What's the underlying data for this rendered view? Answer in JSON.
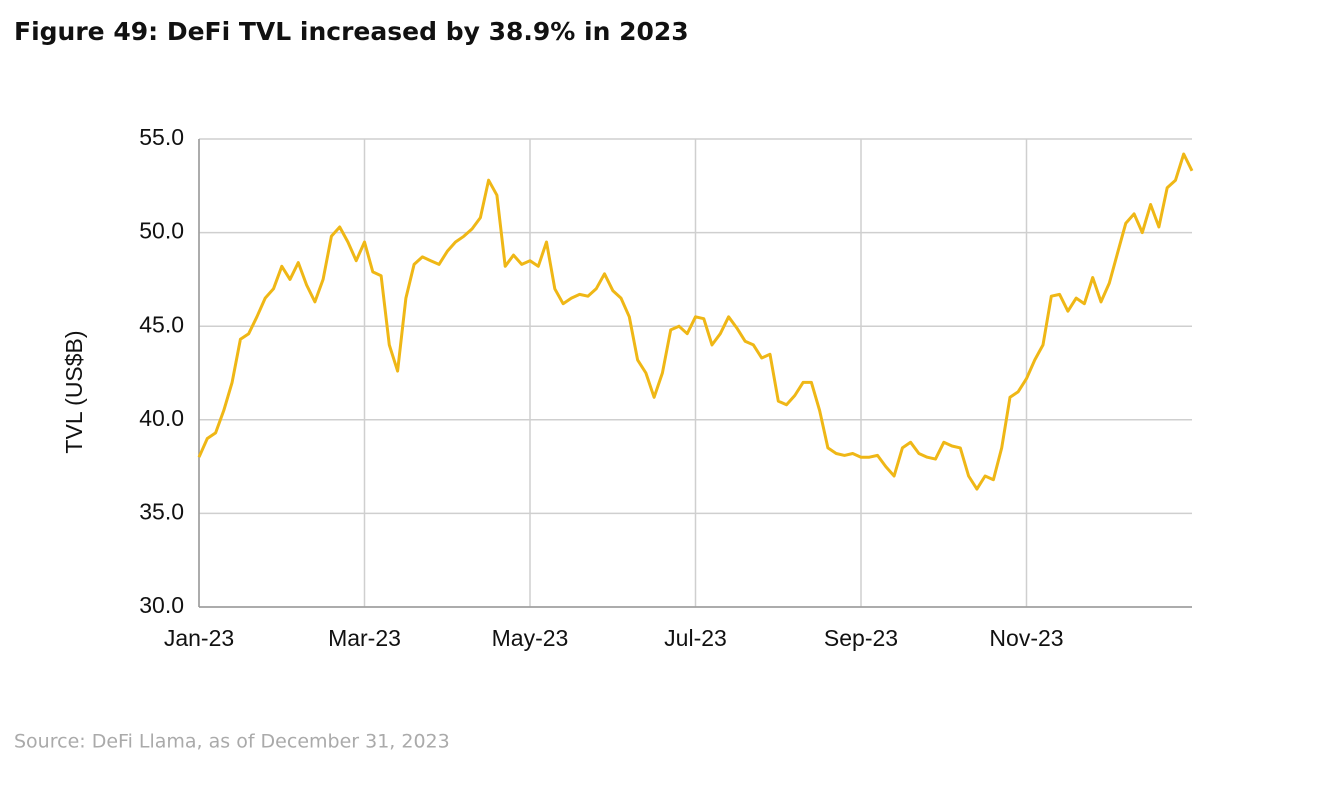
{
  "chart_data": {
    "type": "line",
    "title": "Figure 49: DeFi TVL increased by 38.9% in 2023",
    "y_label": "TVL (US$B)",
    "source": "Source: DeFi Llama, as of December 31, 2023",
    "categories": [
      "Jan-23",
      null,
      null,
      null,
      null,
      null,
      null,
      null,
      null,
      null,
      null,
      null,
      null,
      null,
      null,
      null,
      null,
      null,
      null,
      null,
      "Mar-23",
      null,
      null,
      null,
      null,
      null,
      null,
      null,
      null,
      null,
      null,
      null,
      null,
      null,
      null,
      null,
      null,
      null,
      null,
      null,
      "May-23",
      null,
      null,
      null,
      null,
      null,
      null,
      null,
      null,
      null,
      null,
      null,
      null,
      null,
      null,
      null,
      null,
      null,
      null,
      null,
      "Jul-23",
      null,
      null,
      null,
      null,
      null,
      null,
      null,
      null,
      null,
      null,
      null,
      null,
      null,
      null,
      null,
      null,
      null,
      null,
      null,
      "Sep-23",
      null,
      null,
      null,
      null,
      null,
      null,
      null,
      null,
      null,
      null,
      null,
      null,
      null,
      null,
      null,
      null,
      null,
      null,
      null,
      "Nov-23",
      null,
      null,
      null,
      null,
      null,
      null,
      null,
      null,
      null,
      null,
      null,
      null,
      null,
      null,
      null,
      null,
      null,
      null,
      null,
      null
    ],
    "series": [
      {
        "name": "TVL",
        "color": "#efb716",
        "values": [
          38.0,
          39.0,
          39.3,
          40.5,
          42.0,
          44.3,
          44.6,
          45.5,
          46.5,
          47.0,
          48.2,
          47.5,
          48.4,
          47.2,
          46.3,
          47.5,
          49.8,
          50.3,
          49.5,
          48.5,
          49.5,
          47.9,
          47.7,
          44.0,
          42.6,
          46.5,
          48.3,
          48.7,
          48.5,
          48.3,
          49.0,
          49.5,
          49.8,
          50.2,
          50.8,
          52.8,
          52.0,
          48.2,
          48.8,
          48.3,
          48.5,
          48.2,
          49.5,
          47.0,
          46.2,
          46.5,
          46.7,
          46.6,
          47.0,
          47.8,
          46.9,
          46.5,
          45.5,
          43.2,
          42.5,
          41.2,
          42.5,
          44.8,
          45.0,
          44.6,
          45.5,
          45.4,
          44.0,
          44.6,
          45.5,
          44.9,
          44.2,
          44.0,
          43.3,
          43.5,
          41.0,
          40.8,
          41.3,
          42.0,
          42.0,
          40.5,
          38.5,
          38.2,
          38.1,
          38.2,
          38.0,
          38.0,
          38.1,
          37.5,
          37.0,
          38.5,
          38.8,
          38.2,
          38.0,
          37.9,
          38.8,
          38.6,
          38.5,
          37.0,
          36.3,
          37.0,
          36.8,
          38.5,
          41.2,
          41.5,
          42.2,
          43.2,
          44.0,
          46.6,
          46.7,
          45.8,
          46.5,
          46.2,
          47.6,
          46.3,
          47.3,
          48.9,
          50.5,
          51.0,
          50.0,
          51.5,
          50.3,
          52.4,
          52.8,
          54.2,
          53.3
        ]
      }
    ],
    "ylim": [
      30,
      55
    ],
    "yticks": [
      {
        "value": 30,
        "label": "30.0"
      },
      {
        "value": 35,
        "label": "35.0"
      },
      {
        "value": 40,
        "label": "40.0"
      },
      {
        "value": 45,
        "label": "45.0"
      },
      {
        "value": 50,
        "label": "50.0"
      },
      {
        "value": 55,
        "label": "55.0"
      }
    ],
    "grid": true
  }
}
